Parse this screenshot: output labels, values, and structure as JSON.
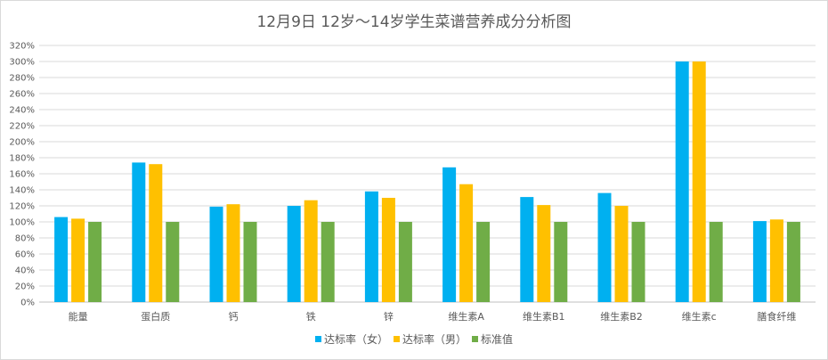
{
  "chart_data": {
    "type": "bar",
    "title": "12月9日 12岁～14岁学生菜谱营养成分分析图",
    "categories": [
      "能量",
      "蛋白质",
      "钙",
      "铁",
      "锌",
      "维生素A",
      "维生素B1",
      "维生素B2",
      "维生素c",
      "膳食纤维"
    ],
    "series": [
      {
        "name": "达标率（女）",
        "color": "#00b0f0",
        "values": [
          106,
          174,
          119,
          120,
          138,
          168,
          131,
          136,
          300,
          101
        ]
      },
      {
        "name": "达标率（男）",
        "color": "#ffc000",
        "values": [
          104,
          172,
          122,
          127,
          130,
          147,
          121,
          120,
          300,
          103
        ]
      },
      {
        "name": "标准值",
        "color": "#70ad47",
        "values": [
          100,
          100,
          100,
          100,
          100,
          100,
          100,
          100,
          100,
          100
        ]
      }
    ],
    "ylim": [
      0,
      320
    ],
    "ytick_step": 20,
    "ytick_format": "percent",
    "grid": true,
    "legend_position": "bottom"
  }
}
